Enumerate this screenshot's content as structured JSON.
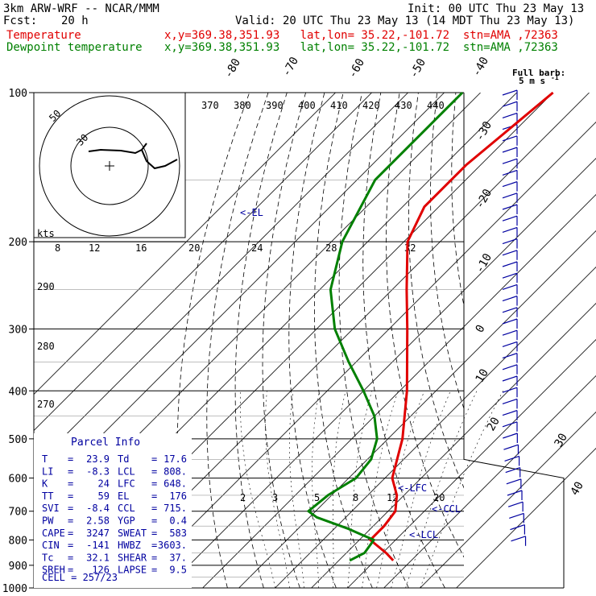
{
  "header": {
    "model": "3km ARW-WRF -- NCAR/MMM",
    "init": "Init: 00 UTC Thu 23 May 13",
    "fcst_label": "Fcst:",
    "fcst_value": "20 h",
    "valid": "Valid: 20 UTC Thu 23 May 13 (14 MDT Thu 23 May 13)",
    "temp_label": "Temperature",
    "temp_loc": "x,y=369.38,351.93   lat,lon= 35.22,-101.72  stn=AMA ,72363",
    "dew_label": "Dewpoint temperature",
    "dew_loc": "x,y=369.38,351.93   lat,lon= 35.22,-101.72  stn=AMA ,72363"
  },
  "colors": {
    "temperature": "#e00000",
    "dewpoint": "#008000",
    "text_blue": "#0000a0",
    "grid": "#000000"
  },
  "wind_legend": {
    "title": "Full barb:",
    "value": "5 m s",
    "exp": "-1"
  },
  "hodograph": {
    "speed_unit": "kts",
    "ring_labels": [
      "50",
      "30"
    ]
  },
  "parcel_info": {
    "title": "Parcel Info",
    "rows": [
      [
        "T",
        "23.9",
        "Td",
        "17.6"
      ],
      [
        "LI",
        "-8.3",
        "LCL",
        "808."
      ],
      [
        "K",
        "24",
        "LFC",
        "648."
      ],
      [
        "TT",
        "59",
        "EL",
        "176"
      ],
      [
        "SVI",
        "-8.4",
        "CCL",
        "715."
      ],
      [
        "PW",
        "2.58",
        "YGP",
        "0.4"
      ],
      [
        "CAPE",
        "3247",
        "SWEAT",
        "583"
      ],
      [
        "CIN",
        "-141",
        "HWBZ",
        "3603."
      ],
      [
        "Tc",
        "32.1",
        "SHEAR",
        "37."
      ],
      [
        "SREH",
        "126",
        "LAPSE",
        "9.5"
      ]
    ],
    "cell": "CELL = 257/23"
  },
  "chart_data": {
    "type": "line",
    "y_axis": {
      "scale": "log",
      "range": [
        1000,
        100
      ],
      "ticks": [
        100,
        200,
        300,
        400,
        500,
        600,
        700,
        800,
        900,
        1000
      ],
      "unit": "hPa"
    },
    "isotherm_labels": [
      "-80",
      "-70",
      "-60",
      "-50",
      "-40",
      "-30",
      "-20",
      "-10",
      "0",
      "10",
      "20",
      "30",
      "40"
    ],
    "theta_labels": [
      "370",
      "380",
      "390",
      "400",
      "410",
      "420",
      "430",
      "440"
    ],
    "theta_labels_lower": [
      "290",
      "280",
      "270"
    ],
    "mixing_ratio_labels_upper": [
      "8",
      "12",
      "16",
      "20",
      "24",
      "28",
      "32"
    ],
    "mixing_ratio_labels_lower": [
      "2",
      "3",
      "5",
      "8",
      "12",
      "20"
    ],
    "annotations": [
      "<-EL",
      "<-LFC",
      "<-CCL",
      "<-LCL"
    ],
    "series": [
      {
        "name": "Temperature",
        "points": [
          [
            100,
            -60
          ],
          [
            140,
            -64
          ],
          [
            170,
            -64
          ],
          [
            200,
            -59
          ],
          [
            250,
            -46
          ],
          [
            300,
            -35
          ],
          [
            400,
            -18
          ],
          [
            500,
            -6
          ],
          [
            600,
            2
          ],
          [
            650,
            8
          ],
          [
            700,
            12
          ],
          [
            750,
            13
          ],
          [
            800,
            13
          ],
          [
            850,
            21
          ],
          [
            880,
            25
          ]
        ]
      },
      {
        "name": "Dewpoint temperature",
        "points": [
          [
            100,
            -85
          ],
          [
            150,
            -85
          ],
          [
            200,
            -77
          ],
          [
            250,
            -67
          ],
          [
            300,
            -55
          ],
          [
            350,
            -42
          ],
          [
            400,
            -30
          ],
          [
            450,
            -20
          ],
          [
            500,
            -13
          ],
          [
            550,
            -9
          ],
          [
            600,
            -8
          ],
          [
            650,
            -11
          ],
          [
            700,
            -12
          ],
          [
            720,
            -8
          ],
          [
            760,
            4
          ],
          [
            780,
            9
          ],
          [
            800,
            14
          ],
          [
            850,
            15
          ],
          [
            880,
            13
          ]
        ]
      }
    ]
  }
}
